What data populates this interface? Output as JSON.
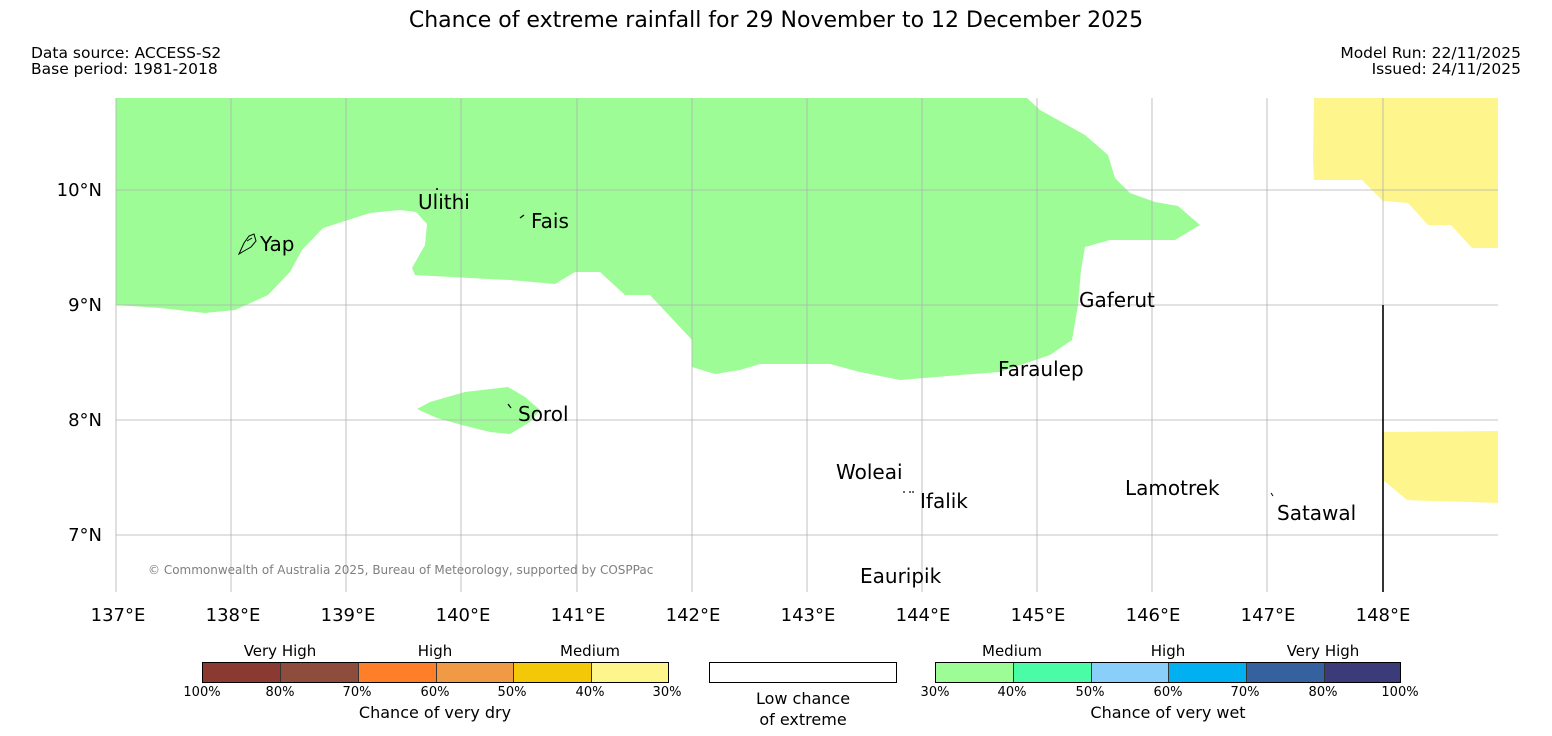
{
  "map": {
    "title": "Chance of extreme rainfall for 29 November to 12 December 2025",
    "data_source": "Data source: ACCESS-S2",
    "base_period": "Base period: 1981-2018",
    "model_run": "Model Run: 22/11/2025",
    "issued": "Issued: 24/11/2025",
    "copyright": "© Commonwealth of Australia 2025, Bureau of Meteorology, supported by COSPPac",
    "lat_labels": [
      "10°N",
      "9°N",
      "8°N",
      "7°N"
    ],
    "lon_labels": [
      "137°E",
      "138°E",
      "139°E",
      "140°E",
      "141°E",
      "142°E",
      "143°E",
      "144°E",
      "145°E",
      "146°E",
      "147°E",
      "148°E"
    ],
    "places": [
      "Yap",
      "Ulithi",
      "Fais",
      "Sorol",
      "Gaferut",
      "Faraulep",
      "Woleai",
      "Ifalik",
      "Lamotrek",
      "Satawal",
      "Eauripik"
    ],
    "colors": {
      "wet_medium": "#9dfc96",
      "dry_medium": "#fef68c",
      "grid": "#b0b0b0"
    }
  },
  "legend": {
    "dry": {
      "categories": [
        "Very High",
        "High",
        "Medium"
      ],
      "ticks": [
        "100%",
        "80%",
        "70%",
        "60%",
        "50%",
        "40%",
        "30%"
      ],
      "title": "Chance of very dry",
      "colors": [
        "#8b3a32",
        "#8d4c3c",
        "#fe7f27",
        "#f09a45",
        "#f2c808",
        "#fef68c"
      ]
    },
    "low": {
      "title_line1": "Low chance",
      "title_line2": "of extreme"
    },
    "wet": {
      "categories": [
        "Medium",
        "High",
        "Very High"
      ],
      "ticks": [
        "30%",
        "40%",
        "50%",
        "60%",
        "70%",
        "80%",
        "100%"
      ],
      "title": "Chance of very wet",
      "colors": [
        "#9dfc96",
        "#4afca5",
        "#89cff9",
        "#00b0f1",
        "#35619f",
        "#3c3b7a"
      ]
    }
  }
}
